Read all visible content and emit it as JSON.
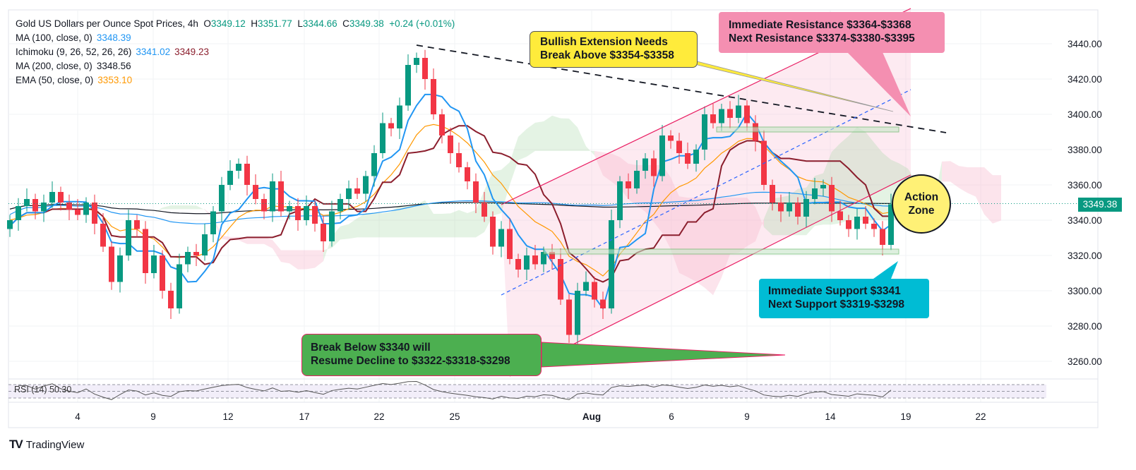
{
  "header": {
    "title": "Gold US Dollars per Ounce Spot Prices, 4h",
    "o_label": "O",
    "o": "3349.12",
    "h_label": "H",
    "h": "3351.77",
    "l_label": "L",
    "l": "3344.66",
    "c_label": "C",
    "c": "3349.38",
    "change": "+0.24 (+0.01%)"
  },
  "indicators": [
    {
      "name": "MA (100, close, 0)",
      "values": [
        "3348.39"
      ],
      "colors": [
        "#2196f3"
      ]
    },
    {
      "name": "Ichimoku (9, 26, 52, 26, 26)",
      "values": [
        "3341.02",
        "3349.23"
      ],
      "colors": [
        "#2196f3",
        "#8b1e2d"
      ]
    },
    {
      "name": "MA (200, close, 0)",
      "values": [
        "3348.56"
      ],
      "colors": [
        "#131722"
      ]
    },
    {
      "name": "EMA (50, close, 0)",
      "values": [
        "3353.10"
      ],
      "colors": [
        "#ff9800"
      ]
    }
  ],
  "colors": {
    "up": "#089981",
    "down": "#f23645",
    "ma100": "#2196f3",
    "ma200": "#131722",
    "ema50": "#ff9800",
    "conversion": "#2196f3",
    "base": "#8b1e2d"
  },
  "chart_data": {
    "type": "candlestick",
    "title": "Gold US Dollars per Ounce Spot Prices, 4h",
    "ylim": [
      3250,
      3450
    ],
    "y_ticks": [
      "3440.00",
      "3420.00",
      "3400.00",
      "3380.00",
      "3360.00",
      "3340.00",
      "3320.00",
      "3300.00",
      "3280.00",
      "3260.00"
    ],
    "x_ticks": [
      "4",
      "9",
      "12",
      "17",
      "22",
      "25",
      "Aug",
      "6",
      "9",
      "14",
      "19",
      "22"
    ],
    "last_price": "3349.38",
    "first_open": 3335,
    "close": [
      3340,
      3348,
      3352,
      3345,
      3350,
      3356,
      3350,
      3346,
      3343,
      3350,
      3338,
      3325,
      3305,
      3320,
      3340,
      3335,
      3310,
      3320,
      3300,
      3290,
      3315,
      3322,
      3320,
      3332,
      3345,
      3360,
      3368,
      3372,
      3360,
      3352,
      3345,
      3362,
      3345,
      3348,
      3340,
      3348,
      3338,
      3328,
      3345,
      3352,
      3358,
      3355,
      3365,
      3378,
      3395,
      3392,
      3405,
      3428,
      3432,
      3420,
      3400,
      3388,
      3378,
      3370,
      3362,
      3350,
      3342,
      3325,
      3335,
      3318,
      3312,
      3320,
      3315,
      3322,
      3318,
      3295,
      3275,
      3300,
      3305,
      3295,
      3290,
      3340,
      3362,
      3358,
      3368,
      3375,
      3365,
      3388,
      3385,
      3378,
      3372,
      3380,
      3400,
      3395,
      3403,
      3398,
      3405,
      3395,
      3385,
      3360,
      3350,
      3345,
      3350,
      3342,
      3352,
      3358,
      3360,
      3345,
      3340,
      3335,
      3342,
      3338,
      3335,
      3326,
      3349
    ]
  },
  "annotations": {
    "bullish": [
      "Bullish Extension Needs",
      "Break Above $3354-$3358"
    ],
    "resistance": [
      "Immediate Resistance $3364-$3368",
      "Next Resistance $3374-$3380-$3395"
    ],
    "support": [
      "Immediate Support $3341",
      "Next Support $3319-$3298"
    ],
    "breakdown": [
      "Break Below $3340 will",
      "Resume Decline to $3322-$3318-$3298"
    ],
    "action_zone": [
      "Action",
      "Zone"
    ]
  },
  "rsi": {
    "label": "RSI (14)",
    "value": "50.30"
  },
  "brand": "TradingView"
}
